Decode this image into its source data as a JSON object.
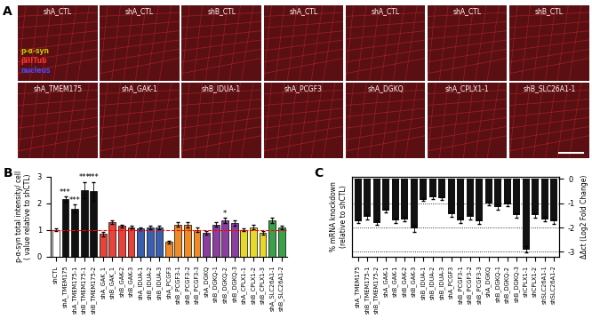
{
  "image_panel": {
    "label": "A",
    "rows": [
      [
        "shA_CTL",
        "shA_CTL",
        "shB_CTL",
        "shA_CTL",
        "shA_CTL",
        "shA_CTL",
        "shB_CTL"
      ],
      [
        "shA_TMEM175",
        "shA_GAK-1",
        "shB_IDUA-1",
        "shA_PCGF3",
        "shA_DGKQ",
        "shA_CPLX1-1",
        "shB_SLC26A1-1"
      ]
    ],
    "channels": [
      {
        "name": "p-α-syn",
        "color": "#c8c800"
      },
      {
        "name": "βIIITub",
        "color": "#ff3030"
      },
      {
        "name": "nucleus",
        "color": "#4a4aff"
      }
    ]
  },
  "chart_data": [
    {
      "type": "bar",
      "label": "B",
      "y_label": "p-α-syn total intensity/ cell\n( value relative to shCTL)",
      "categories": [
        "shCTL",
        "shA_TMEM175",
        "shA_TMEM175-1",
        "shB_TMEM175-1",
        "shB_TMEM175-2",
        "shA_GAK_1",
        "shB_GAK_1",
        "shB_GAK-2",
        "shB_GAK-3",
        "shA_IDUA-1",
        "shB_IDUA-2",
        "shB_IDUA-3",
        "shA_PCGF3",
        "shB_PCGF3-1",
        "shB_PCGF3-2",
        "shB_PCGF3-3",
        "shA_DGKQ",
        "shB_DGKQ-1",
        "shB_DGKQ-2",
        "shB_DGKQ-3",
        "shA_CPLX1-1",
        "shB_CPLX1-2",
        "shB_CPLX1-3",
        "shA_SLC26A1-1",
        "shB_SLC26A1-2"
      ],
      "values": [
        1.0,
        2.15,
        1.8,
        2.5,
        2.45,
        0.85,
        1.3,
        1.15,
        1.1,
        1.05,
        1.1,
        1.1,
        0.55,
        1.2,
        1.2,
        1.0,
        0.9,
        1.2,
        1.35,
        1.25,
        1.0,
        1.1,
        0.9,
        1.35,
        1.1
      ],
      "errors": [
        0.05,
        0.1,
        0.15,
        0.3,
        0.35,
        0.08,
        0.06,
        0.06,
        0.05,
        0.06,
        0.06,
        0.06,
        0.05,
        0.08,
        0.1,
        0.08,
        0.06,
        0.08,
        0.1,
        0.1,
        0.05,
        0.08,
        0.06,
        0.1,
        0.06
      ],
      "colors": [
        "#ffffff",
        "#111111",
        "#111111",
        "#111111",
        "#111111",
        "#e8433a",
        "#e8433a",
        "#e8433a",
        "#e8433a",
        "#3a5fb0",
        "#3a5fb0",
        "#3a5fb0",
        "#f08a24",
        "#f08a24",
        "#f08a24",
        "#f08a24",
        "#8a3fa0",
        "#8a3fa0",
        "#8a3fa0",
        "#8a3fa0",
        "#e8d82a",
        "#e8d82a",
        "#e8d82a",
        "#3aa04a",
        "#3aa04a"
      ],
      "annotations": [
        {
          "category": "shA_TMEM175",
          "text": "***"
        },
        {
          "category": "shA_TMEM175-1",
          "text": "***"
        },
        {
          "category": "shB_TMEM175-1",
          "text": "***"
        },
        {
          "category": "shB_TMEM175-2",
          "text": "***"
        },
        {
          "category": "shB_DGKQ-2",
          "text": "*"
        }
      ],
      "reference_line": 1,
      "ylim": [
        0,
        3
      ],
      "yticks": [
        0,
        1,
        2,
        3
      ]
    },
    {
      "type": "bar",
      "label": "C",
      "y_label": "% mRNA knockdown\n(relative to shCTL)",
      "y2_label": "ΔΔct (Log2 Fold Change)",
      "categories": [
        "shA_TMEM175",
        "shB_TMEM175-1",
        "shB_TMEM175-2",
        "shA_GAK-1",
        "shB_GAK-1",
        "shB_GAK-2",
        "shB_GAK-3",
        "shB_IDUA-1",
        "shB_IDUA-2",
        "shB_IDUA-3",
        "shA_PCGF3",
        "shB_PCGF3-1",
        "shB_PCGF3-2",
        "shB_PCGF3-3",
        "shA_DGKQ",
        "shB_DGKQ-1",
        "shB_DGKQ-2",
        "shB_DGKQ-3",
        "shCPLX1-1",
        "shCPLX1-2",
        "shSLC26A1-1",
        "shSLC26A1-2"
      ],
      "series": [
        {
          "name": "ΔΔct",
          "axis": "y2",
          "color": "#111111",
          "values": [
            -1.75,
            -1.55,
            -1.8,
            -1.3,
            -1.7,
            -1.65,
            -2.05,
            -0.85,
            -0.75,
            -0.8,
            -1.45,
            -1.7,
            -1.55,
            -1.75,
            -1.0,
            -1.15,
            -1.05,
            -1.5,
            -2.9,
            -1.5,
            -1.65,
            -1.75
          ],
          "errors": [
            0.08,
            0.1,
            0.1,
            0.08,
            0.1,
            0.1,
            0.12,
            0.06,
            0.06,
            0.06,
            0.1,
            0.1,
            0.1,
            0.1,
            0.08,
            0.1,
            0.08,
            0.1,
            0.12,
            0.1,
            0.1,
            0.1
          ]
        }
      ],
      "ylim": [
        -3.2,
        0.1
      ],
      "yticks": [],
      "y2lim": [
        -3.2,
        0.1
      ],
      "y2ticks": [
        0,
        -1,
        -2,
        -3
      ],
      "grid": true
    }
  ]
}
